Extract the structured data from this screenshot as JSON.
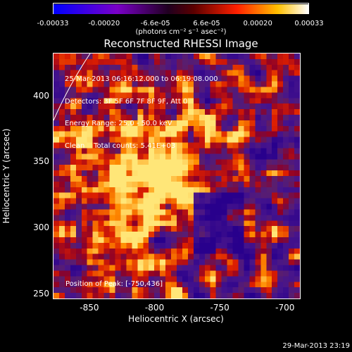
{
  "colorbar": {
    "tick_labels": [
      "-0.00033",
      "-0.00020",
      "-6.6e-05",
      "6.6e-05",
      "0.00020",
      "0.00033"
    ],
    "unit_label": "(photons cm⁻² s⁻¹ asec⁻²)",
    "range": [
      -0.00033,
      0.00033
    ]
  },
  "chart_data": {
    "type": "heatmap",
    "title": "Reconstructed RHESSI Image",
    "xlabel": "Heliocentric X (arcsec)",
    "ylabel": "Heliocentric Y (arcsec)",
    "xlim": [
      -878,
      -688
    ],
    "ylim": [
      246,
      433
    ],
    "x_ticks": [
      -850,
      -800,
      -750,
      -700
    ],
    "y_ticks": [
      250,
      300,
      350,
      400
    ],
    "info_lines": [
      "25-Mar-2013 06:16:12.000 to 06:19:08.000",
      "Detectors: 3F 5F 6F 7F 8F 9F, Att 0",
      "Energy Range: 25.0 - 50.0 keV",
      "Clean    Total counts: 5.41E+03"
    ],
    "peak_text": "Position of Peak: [-750,436]",
    "peak_position": [
      -750,
      436
    ]
  },
  "footer": {
    "date": "29-Mar-2013 23:19"
  }
}
